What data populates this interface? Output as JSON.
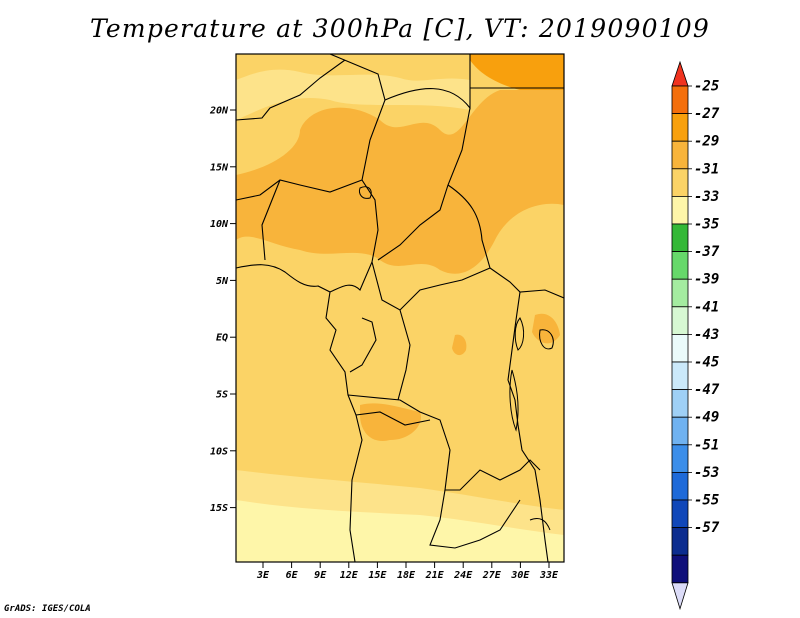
{
  "title": "Temperature at 300hPa [C], VT: 2019090109",
  "credit": "GrADS: IGES/COLA",
  "map": {
    "lat_labels": [
      "20N",
      "15N",
      "10N",
      "5N",
      "EQ",
      "5S",
      "10S",
      "15S"
    ],
    "lon_labels": [
      "3E",
      "6E",
      "9E",
      "12E",
      "15E",
      "18E",
      "21E",
      "24E",
      "27E",
      "30E",
      "33E"
    ]
  },
  "colorbar": {
    "labels": [
      "-25",
      "-27",
      "-29",
      "-31",
      "-33",
      "-35",
      "-37",
      "-39",
      "-41",
      "-43",
      "-45",
      "-47",
      "-49",
      "-51",
      "-53",
      "-55",
      "-57"
    ],
    "colors": [
      "#f0331f",
      "#f46f0c",
      "#f8a00d",
      "#f8b43b",
      "#fbd366",
      "#fef6a9",
      "#34b837",
      "#66d86a",
      "#a4eca0",
      "#d7f8d3",
      "#ebfbfb",
      "#cbe9fa",
      "#9fd0f6",
      "#70b2f0",
      "#3c8ee9",
      "#1e6ad9",
      "#1047b9",
      "#0c2d8f",
      "#10107a",
      "#dcdcf8"
    ]
  }
}
